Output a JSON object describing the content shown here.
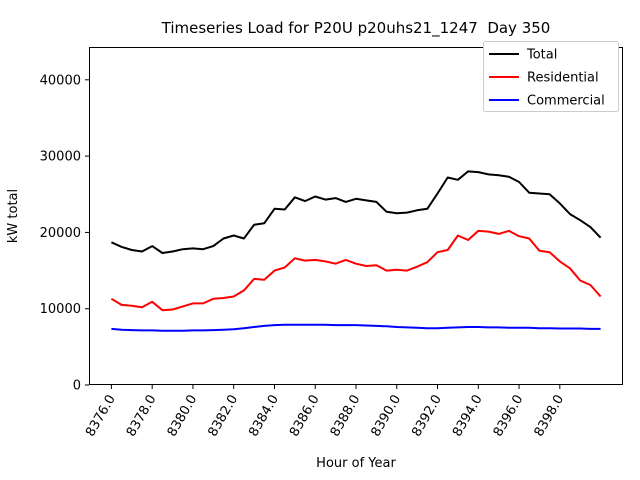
{
  "chart_data": {
    "type": "line",
    "title": "Timeseries Load for P20U p20uhs21_1247  Day 350",
    "xlabel": "Hour of Year",
    "ylabel": "kW total",
    "xlim": [
      8374.9,
      8401.1
    ],
    "ylim": [
      0,
      44300
    ],
    "grid": false,
    "legend": {
      "position": "upper right",
      "items": [
        "Total",
        "Residential",
        "Commercial"
      ]
    },
    "xticks": {
      "values": [
        8376,
        8378,
        8380,
        8382,
        8384,
        8386,
        8388,
        8390,
        8392,
        8394,
        8396,
        8398
      ],
      "labels": [
        "8376.0",
        "8378.0",
        "8380.0",
        "8382.0",
        "8384.0",
        "8386.0",
        "8388.0",
        "8390.0",
        "8392.0",
        "8394.0",
        "8396.0",
        "8398.0"
      ]
    },
    "yticks": {
      "values": [
        0,
        10000,
        20000,
        30000,
        40000
      ],
      "labels": [
        "0",
        "10000",
        "20000",
        "30000",
        "40000"
      ]
    },
    "x": [
      8376,
      8376.5,
      8377,
      8377.5,
      8378,
      8378.5,
      8379,
      8379.5,
      8380,
      8380.5,
      8381,
      8381.5,
      8382,
      8382.5,
      8383,
      8383.5,
      8384,
      8384.5,
      8385,
      8385.5,
      8386,
      8386.5,
      8387,
      8387.5,
      8388,
      8388.5,
      8389,
      8389.5,
      8390,
      8390.5,
      8391,
      8391.5,
      8392,
      8392.5,
      8393,
      8393.5,
      8394,
      8394.5,
      8395,
      8395.5,
      8396,
      8396.5,
      8397,
      8397.5,
      8398,
      8398.5,
      8399,
      8399.5,
      8400
    ],
    "series": [
      {
        "name": "Total",
        "color": "#000000",
        "values": [
          18700,
          18100,
          17700,
          17500,
          18200,
          17300,
          17500,
          17800,
          17900,
          17800,
          18200,
          19200,
          19600,
          19200,
          21000,
          21200,
          23100,
          23000,
          24600,
          24100,
          24700,
          24300,
          24500,
          24000,
          24400,
          24200,
          24000,
          22700,
          22500,
          22600,
          22900,
          23100,
          25100,
          27200,
          26900,
          28000,
          27900,
          27600,
          27500,
          27300,
          26600,
          25200,
          25100,
          25000,
          23800,
          22400,
          21600,
          20700,
          19300
        ]
      },
      {
        "name": "Residential",
        "color": "#ff0000",
        "values": [
          11300,
          10500,
          10400,
          10200,
          10900,
          9800,
          9900,
          10300,
          10700,
          10700,
          11300,
          11400,
          11600,
          12400,
          13900,
          13800,
          15000,
          15400,
          16600,
          16300,
          16400,
          16200,
          15900,
          16400,
          15900,
          15600,
          15700,
          15000,
          15100,
          15000,
          15500,
          16100,
          17400,
          17700,
          19600,
          19000,
          20200,
          20100,
          19800,
          20200,
          19500,
          19200,
          17600,
          17400,
          16200,
          15300,
          13700,
          13100,
          11600
        ]
      },
      {
        "name": "Commercial",
        "color": "#0000ff",
        "values": [
          7350,
          7250,
          7200,
          7150,
          7150,
          7100,
          7100,
          7100,
          7150,
          7150,
          7200,
          7250,
          7300,
          7450,
          7600,
          7750,
          7850,
          7900,
          7900,
          7900,
          7900,
          7900,
          7850,
          7850,
          7850,
          7800,
          7750,
          7700,
          7600,
          7550,
          7500,
          7450,
          7450,
          7500,
          7550,
          7600,
          7600,
          7550,
          7550,
          7500,
          7500,
          7500,
          7450,
          7450,
          7400,
          7400,
          7400,
          7350,
          7350
        ]
      }
    ]
  }
}
